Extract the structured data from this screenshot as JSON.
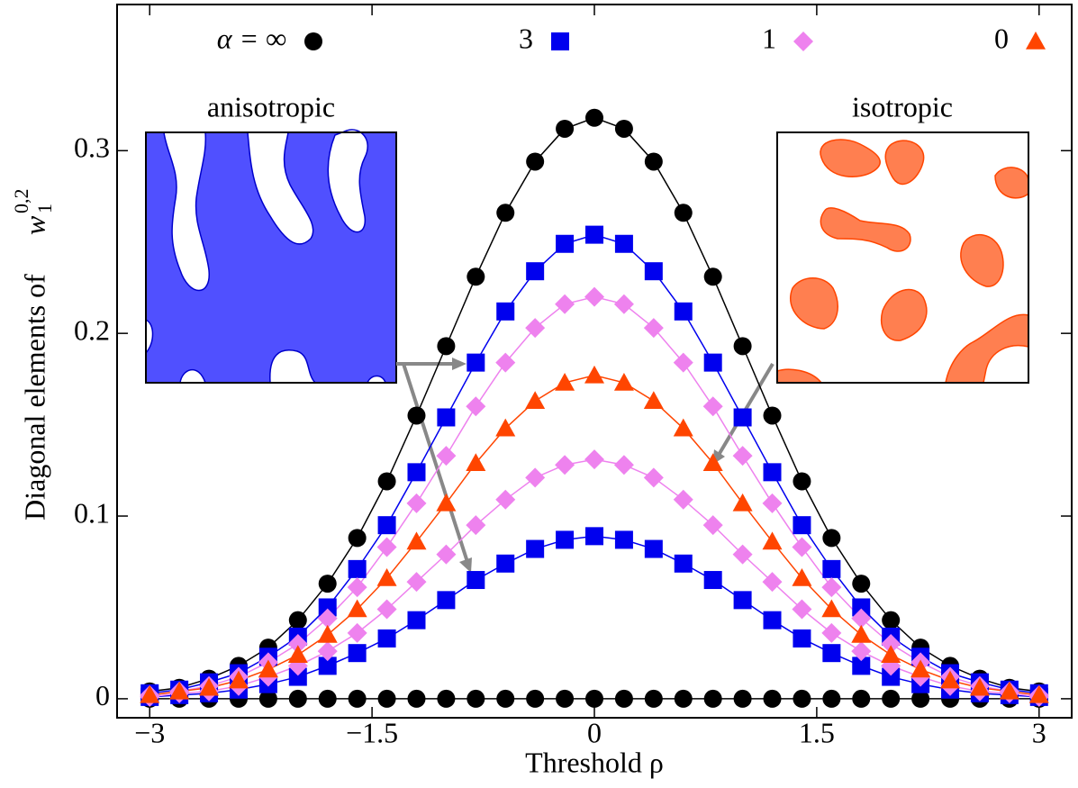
{
  "chart_data": {
    "type": "line",
    "xlabel": "Threshold ρ",
    "ylabel": "Diagonal elements of",
    "ylabel_math": {
      "base": "w",
      "sub": "1",
      "sup": "0,2"
    },
    "annotations": [
      "anisotropic",
      "isotropic"
    ],
    "x": [
      -3,
      -2.8,
      -2.6,
      -2.4,
      -2.2,
      -2,
      -1.8,
      -1.6,
      -1.4,
      -1.2,
      -1,
      -0.8,
      -0.6,
      -0.4,
      -0.2,
      0,
      0.2,
      0.4,
      0.6,
      0.8,
      1,
      1.2,
      1.4,
      1.6,
      1.8,
      2,
      2.2,
      2.4,
      2.6,
      2.8,
      3
    ],
    "xlim": [
      -3.22,
      3.22
    ],
    "ylim": [
      -0.0104,
      0.38
    ],
    "xticks": [
      {
        "value": -3,
        "label": "−3"
      },
      {
        "value": -1.5,
        "label": "−1.5"
      },
      0,
      1.5,
      3
    ],
    "yticks": [
      0,
      0.1,
      0.2,
      0.3
    ],
    "series": [
      {
        "name": "α = ∞",
        "color": "#000000",
        "marker": "circle",
        "values": [
          0.004,
          0.006,
          0.011,
          0.018,
          0.028,
          0.043,
          0.063,
          0.088,
          0.119,
          0.155,
          0.193,
          0.231,
          0.266,
          0.294,
          0.312,
          0.318,
          0.312,
          0.294,
          0.266,
          0.231,
          0.193,
          0.155,
          0.119,
          0.088,
          0.063,
          0.043,
          0.028,
          0.018,
          0.011,
          0.006,
          0.004
        ]
      },
      {
        "color": "#000000",
        "marker": "circle",
        "values": [
          0,
          0,
          0,
          0,
          0,
          0,
          0,
          0,
          0,
          0,
          0,
          0,
          0,
          0,
          0,
          0,
          0,
          0,
          0,
          0,
          0,
          0,
          0,
          0,
          0,
          0,
          0,
          0,
          0,
          0,
          0
        ]
      },
      {
        "name": "3",
        "color": "#0000ee",
        "marker": "square",
        "values": [
          0.003,
          0.005,
          0.009,
          0.014,
          0.023,
          0.034,
          0.05,
          0.071,
          0.095,
          0.124,
          0.154,
          0.184,
          0.212,
          0.234,
          0.249,
          0.254,
          0.249,
          0.234,
          0.212,
          0.184,
          0.154,
          0.124,
          0.095,
          0.071,
          0.05,
          0.034,
          0.023,
          0.014,
          0.009,
          0.005,
          0.003
        ]
      },
      {
        "color": "#0000ee",
        "marker": "square",
        "values": [
          0.001,
          0.002,
          0.003,
          0.005,
          0.008,
          0.012,
          0.018,
          0.025,
          0.033,
          0.043,
          0.054,
          0.065,
          0.074,
          0.082,
          0.087,
          0.089,
          0.087,
          0.082,
          0.074,
          0.065,
          0.054,
          0.043,
          0.033,
          0.025,
          0.018,
          0.012,
          0.008,
          0.005,
          0.003,
          0.002,
          0.001
        ]
      },
      {
        "name": "1",
        "color": "#ee82ee",
        "marker": "diamond",
        "values": [
          0.002,
          0.004,
          0.007,
          0.012,
          0.02,
          0.03,
          0.044,
          0.061,
          0.083,
          0.107,
          0.133,
          0.16,
          0.184,
          0.203,
          0.216,
          0.22,
          0.216,
          0.203,
          0.184,
          0.16,
          0.133,
          0.107,
          0.083,
          0.061,
          0.044,
          0.03,
          0.02,
          0.012,
          0.007,
          0.004,
          0.002
        ]
      },
      {
        "color": "#ee82ee",
        "marker": "diamond",
        "values": [
          0.001,
          0.003,
          0.004,
          0.007,
          0.012,
          0.018,
          0.026,
          0.036,
          0.049,
          0.064,
          0.079,
          0.095,
          0.109,
          0.121,
          0.128,
          0.131,
          0.128,
          0.121,
          0.109,
          0.095,
          0.079,
          0.064,
          0.049,
          0.036,
          0.026,
          0.018,
          0.012,
          0.007,
          0.004,
          0.003,
          0.001
        ]
      },
      {
        "name": "0",
        "color": "#ff4500",
        "marker": "triangle",
        "values": [
          0.002,
          0.004,
          0.006,
          0.01,
          0.016,
          0.024,
          0.035,
          0.049,
          0.066,
          0.086,
          0.107,
          0.129,
          0.148,
          0.163,
          0.173,
          0.177,
          0.173,
          0.163,
          0.148,
          0.129,
          0.107,
          0.086,
          0.066,
          0.049,
          0.035,
          0.024,
          0.016,
          0.01,
          0.006,
          0.004,
          0.002
        ]
      }
    ]
  }
}
